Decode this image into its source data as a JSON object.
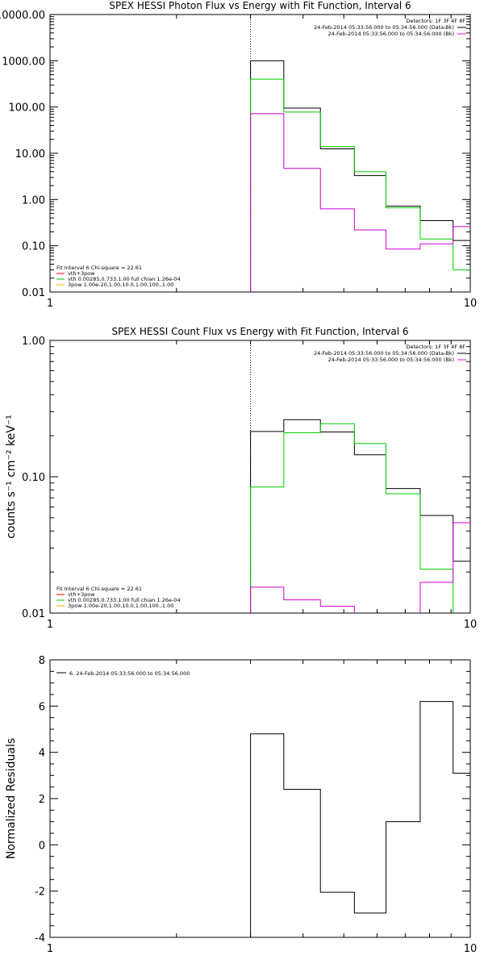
{
  "chart_data": [
    {
      "type": "line",
      "title": "SPEX HESSI Photon Flux vs Energy with Fit Function, Interval 6",
      "xlabel": "",
      "ylabel": "",
      "xscale": "log",
      "yscale": "log",
      "xlim": [
        1,
        10
      ],
      "ylim": [
        0.01,
        10000
      ],
      "x_ticks": [
        "1",
        "10"
      ],
      "y_ticks": [
        "0.01",
        "0.10",
        "1.00",
        "10.00",
        "100.00",
        "1000.00",
        "10000.00"
      ],
      "marker_line_x": 3.0,
      "legend_top": {
        "header": "Detectors: 1F 3F 4F 8F",
        "entries": [
          {
            "label": "24-Feb-2014 05:33:56.000 to 05:34:56.000 (Data-Bk)",
            "color": "#000000"
          },
          {
            "label": "24-Feb-2014 05:33:56.000 to 05:34:56.000 (Bk)",
            "color": "#ff00ff"
          }
        ]
      },
      "legend_bottom": {
        "header": "Fit Interval  6   Chi-square = 22.61",
        "entries": [
          {
            "label": "vth+3pow",
            "color": "#ff0000"
          },
          {
            "label": "vth 0.00285,0.733,1.00   full chian 1.26e-04",
            "color": "#00cc00"
          },
          {
            "label": "3pow 1.00e-20,1.00,10.0,1.00,100.,1.00",
            "color": "#ffaa00"
          }
        ]
      },
      "bin_edges": [
        3.0,
        3.6,
        4.4,
        5.3,
        6.3,
        7.6,
        9.1,
        10.0
      ],
      "series": [
        {
          "name": "24-Feb-2014 05:33:56.000 to 05:34:56.000 (Data-Bk)",
          "color": "#000000",
          "values": [
            1000,
            95,
            12.5,
            3.3,
            0.72,
            0.35,
            0.13
          ]
        },
        {
          "name": "vth 0.00285,0.733,1.00   full chian 1.26e-04",
          "color": "#00cc00",
          "values": [
            400,
            78,
            14,
            4.0,
            0.66,
            0.14,
            0.03
          ]
        },
        {
          "name": "24-Feb-2014 05:33:56.000 to 05:34:56.000 (Bk)",
          "color": "#cc00cc",
          "values": [
            72,
            4.7,
            0.63,
            0.22,
            0.085,
            0.11,
            0.26
          ]
        }
      ]
    },
    {
      "type": "line",
      "title": "SPEX HESSI Count Flux vs Energy with Fit Function, Interval 6",
      "xlabel": "",
      "ylabel": "counts s⁻¹ cm⁻² keV⁻¹",
      "xscale": "log",
      "yscale": "log",
      "xlim": [
        1,
        10
      ],
      "ylim": [
        0.01,
        1.0
      ],
      "x_ticks": [
        "1",
        "10"
      ],
      "y_ticks": [
        "0.01",
        "0.10",
        "1.00"
      ],
      "marker_line_x": 3.0,
      "legend_top": {
        "header": "Detectors: 1F 3F 4F 8F",
        "entries": [
          {
            "label": "24-Feb-2014 05:33:56.000 to 05:34:56.000 (Data-Bk)",
            "color": "#000000"
          },
          {
            "label": "24-Feb-2014 05:33:56.000 to 05:34:56.000 (Bk)",
            "color": "#ff00ff"
          }
        ]
      },
      "legend_bottom": {
        "header": "Fit Interval  6   Chi-square = 22.61",
        "entries": [
          {
            "label": "vth+3pow",
            "color": "#ff0000"
          },
          {
            "label": "vth 0.00285,0.733,1.00   full chian 1.26e-04",
            "color": "#00cc00"
          },
          {
            "label": "3pow 1.00e-20,1.00,10.0,1.00,100.,1.00",
            "color": "#ffaa00"
          }
        ]
      },
      "bin_edges": [
        3.0,
        3.6,
        4.4,
        5.3,
        6.3,
        7.6,
        9.1,
        10.0
      ],
      "series": [
        {
          "name": "24-Feb-2014 05:33:56.000 to 05:34:56.000 (Data-Bk)",
          "color": "#000000",
          "values": [
            0.215,
            0.262,
            0.213,
            0.145,
            0.082,
            0.052,
            0.024
          ]
        },
        {
          "name": "vth 0.00285,0.733,1.00   full chian 1.26e-04",
          "color": "#00cc00",
          "values": [
            0.084,
            0.21,
            0.245,
            0.175,
            0.075,
            0.021,
            0.009
          ]
        },
        {
          "name": "24-Feb-2014 05:33:56.000 to 05:34:56.000 (Bk)",
          "color": "#cc00cc",
          "values": [
            0.0155,
            0.0125,
            0.0112,
            0.0099,
            0.0099,
            0.0168,
            0.046
          ]
        }
      ]
    },
    {
      "type": "line",
      "title": "",
      "xlabel": "",
      "ylabel": "Normalized Residuals",
      "xscale": "log",
      "yscale": "linear",
      "xlim": [
        1,
        10
      ],
      "ylim": [
        -4,
        8
      ],
      "x_ticks": [
        "1",
        "10"
      ],
      "y_ticks": [
        "-4",
        "-2",
        "0",
        "2",
        "4",
        "6",
        "8"
      ],
      "legend_top": {
        "header": "",
        "entries": [
          {
            "label": "6. 24-Feb-2014 05:33:56.000 to 05:34:56.000",
            "color": "#000000"
          }
        ]
      },
      "bin_edges": [
        3.0,
        3.6,
        4.4,
        5.3,
        6.3,
        7.6,
        9.1,
        10.0
      ],
      "series": [
        {
          "name": "6. 24-Feb-2014 05:33:56.000 to 05:34:56.000",
          "color": "#000000",
          "values": [
            4.8,
            2.4,
            -2.05,
            -2.95,
            1.0,
            6.2,
            3.1
          ]
        }
      ]
    }
  ]
}
